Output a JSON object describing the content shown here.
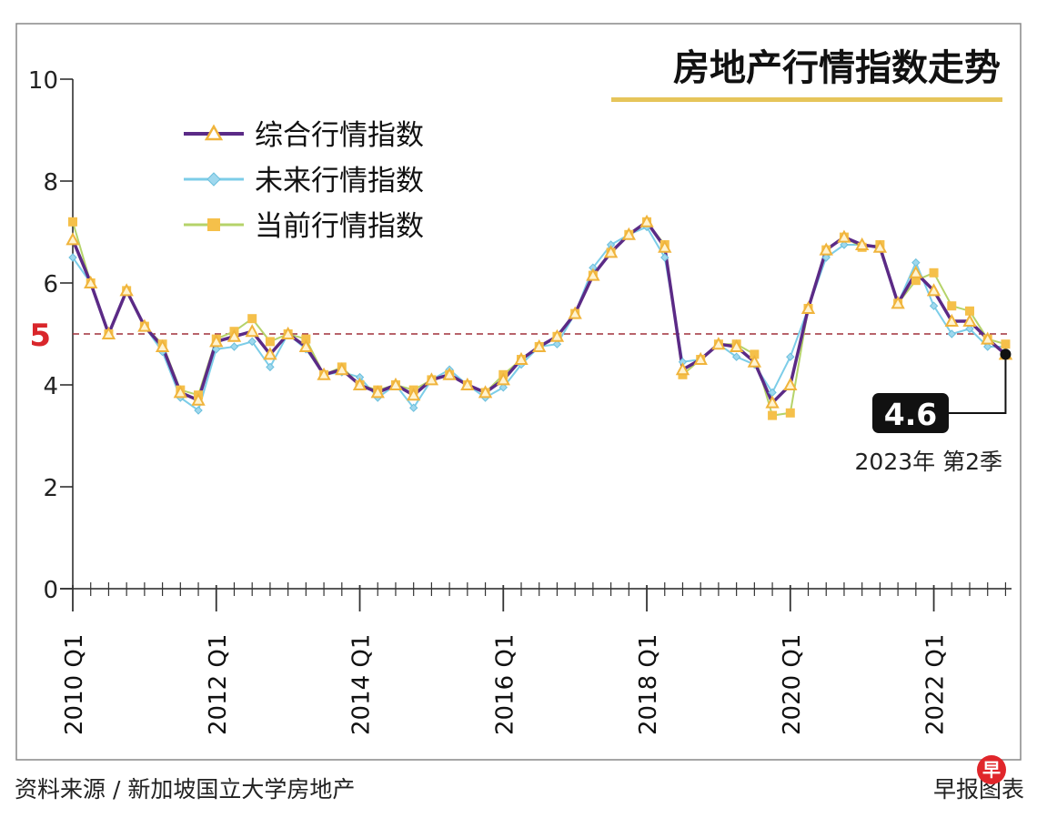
{
  "chart_data": {
    "type": "line",
    "title": "房地产行情指数走势",
    "xlabel": "",
    "ylabel": "",
    "ylim": [
      0,
      10
    ],
    "yticks": [
      "0",
      "2",
      "4",
      "6",
      "8",
      "10"
    ],
    "reference_line": {
      "value": 5,
      "label": "5",
      "color": "#d9262b"
    },
    "x_tick_labels": [
      "2010 Q1",
      "2012 Q1",
      "2014 Q1",
      "2016 Q1",
      "2018 Q1",
      "2020 Q1",
      "2022 Q1"
    ],
    "legend_position": "top-left",
    "series": [
      {
        "name": "综合行情指数",
        "line_color": "#5b2a86",
        "marker": "triangle",
        "marker_color": "#f0b43c",
        "values": [
          6.85,
          6.0,
          5.0,
          5.85,
          5.15,
          4.75,
          3.85,
          3.7,
          4.85,
          4.95,
          5.05,
          4.6,
          5.0,
          4.75,
          4.2,
          4.3,
          4.0,
          3.85,
          4.0,
          3.8,
          4.1,
          4.2,
          4.0,
          3.85,
          4.1,
          4.5,
          4.75,
          4.95,
          5.4,
          6.15,
          6.6,
          6.95,
          7.2,
          6.7,
          4.3,
          4.5,
          4.8,
          4.75,
          4.45,
          3.65,
          4.0,
          5.5,
          6.65,
          6.9,
          6.75,
          6.7,
          5.6,
          6.2,
          5.85,
          5.25,
          5.25,
          4.9,
          4.6
        ]
      },
      {
        "name": "未来行情指数",
        "line_color": "#7ccde8",
        "marker": "diamond",
        "marker_color": "#9fd8ee",
        "values": [
          6.5,
          6.0,
          5.0,
          5.85,
          5.15,
          4.65,
          3.75,
          3.5,
          4.7,
          4.75,
          4.85,
          4.35,
          5.0,
          4.7,
          4.2,
          4.25,
          4.15,
          3.75,
          4.0,
          3.55,
          4.1,
          4.3,
          4.0,
          3.75,
          3.95,
          4.4,
          4.75,
          4.8,
          5.4,
          6.3,
          6.75,
          6.95,
          7.1,
          6.5,
          4.45,
          4.5,
          4.8,
          4.55,
          4.4,
          3.85,
          4.55,
          5.5,
          6.5,
          6.75,
          6.75,
          6.7,
          5.6,
          6.4,
          5.55,
          5.0,
          5.1,
          4.75,
          4.75
        ]
      },
      {
        "name": "当前行情指数",
        "line_color": "#b5d36a",
        "marker": "square",
        "marker_color": "#f5c04a",
        "values": [
          7.2,
          6.0,
          5.0,
          5.85,
          5.15,
          4.8,
          3.9,
          3.8,
          4.9,
          5.05,
          5.3,
          4.85,
          5.0,
          4.9,
          4.2,
          4.35,
          4.0,
          3.9,
          4.0,
          3.9,
          4.1,
          4.2,
          4.0,
          3.85,
          4.2,
          4.5,
          4.75,
          4.95,
          5.4,
          6.15,
          6.6,
          6.95,
          7.2,
          6.75,
          4.2,
          4.5,
          4.8,
          4.8,
          4.6,
          3.4,
          3.45,
          5.5,
          6.65,
          6.9,
          6.7,
          6.75,
          5.6,
          6.05,
          6.2,
          5.55,
          5.45,
          4.9,
          4.8
        ]
      }
    ],
    "callout": {
      "value": "4.6",
      "label": "2023年 第2季"
    }
  },
  "footer": {
    "source": "资料来源 / 新加坡国立大学房地产",
    "credit": "早报图表",
    "logo_text": "早"
  }
}
